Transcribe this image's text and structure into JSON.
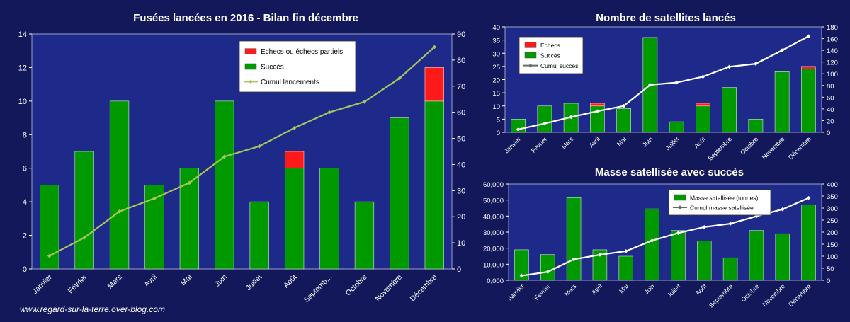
{
  "footer": "www.regard-sur-la-terre.over-blog.com",
  "colors": {
    "background": "#12185a",
    "plot": "#1e2a8a",
    "success": "#009a00",
    "failure": "#ff1a1a",
    "line_main": "#a9c45c",
    "line_white": "#ffffff"
  },
  "chart_data": [
    {
      "type": "bar",
      "title": "Fusées lancées en 2016 - Bilan fin décembre",
      "categories": [
        "Janvier",
        "Février",
        "Mars",
        "Avril",
        "Mai",
        "Juin",
        "Juillet",
        "Août",
        "Septemb...",
        "Octobre",
        "Novembre",
        "Décembre"
      ],
      "series": [
        {
          "name": "Succès",
          "values": [
            5,
            7,
            10,
            5,
            6,
            10,
            4,
            6,
            6,
            4,
            9,
            10
          ]
        },
        {
          "name": "Echecs ou échecs partiels",
          "values": [
            0,
            0,
            0,
            0,
            0,
            0,
            0,
            1,
            0,
            0,
            0,
            2
          ]
        },
        {
          "name": "Cumul lancements",
          "axis": "right",
          "values": [
            5,
            12,
            22,
            27,
            33,
            43,
            47,
            54,
            60,
            64,
            73,
            85
          ]
        }
      ],
      "ylim": [
        0,
        14
      ],
      "yticks": [
        0,
        2,
        4,
        6,
        8,
        10,
        12,
        14
      ],
      "y2lim": [
        0,
        90
      ],
      "y2ticks": [
        0,
        10,
        20,
        30,
        40,
        50,
        60,
        70,
        80,
        90
      ],
      "legend": "top-right"
    },
    {
      "type": "bar",
      "title": "Nombre de satellites lancés",
      "categories": [
        "Janvier",
        "Février",
        "Mars",
        "Avril",
        "Mai",
        "Juin",
        "Juillet",
        "Août",
        "Septembre",
        "Octobre",
        "Novembre",
        "Décembre"
      ],
      "series": [
        {
          "name": "Echecs",
          "values": [
            0,
            0,
            0,
            1,
            0,
            0,
            0,
            1,
            0,
            0,
            0,
            1
          ]
        },
        {
          "name": "Succès",
          "values": [
            5,
            10,
            11,
            10,
            9,
            36,
            4,
            10,
            17,
            5,
            23,
            24
          ]
        },
        {
          "name": "Cumul succès",
          "axis": "right",
          "values": [
            5,
            15,
            26,
            36,
            45,
            81,
            85,
            95,
            112,
            117,
            140,
            164
          ]
        }
      ],
      "ylim": [
        0,
        40
      ],
      "yticks": [
        0,
        5,
        10,
        15,
        20,
        25,
        30,
        35,
        40
      ],
      "y2lim": [
        0,
        180
      ],
      "y2ticks": [
        0,
        20,
        40,
        60,
        80,
        100,
        120,
        140,
        160,
        180
      ],
      "legend": "top-left"
    },
    {
      "type": "bar",
      "title": "Masse satellisée avec succès",
      "categories": [
        "Janvier",
        "Février",
        "Mars",
        "Avril",
        "Mai",
        "Juin",
        "Juillet",
        "Août",
        "Septembre",
        "Octobre",
        "Novembre",
        "Décembre"
      ],
      "series": [
        {
          "name": "Masse satellisée (tonnes)",
          "values": [
            19000,
            16000,
            51500,
            19000,
            15000,
            44500,
            31000,
            24500,
            14000,
            31000,
            29000,
            47000
          ]
        },
        {
          "name": "Cumul masse satellisée",
          "axis": "right",
          "values": [
            19,
            35,
            87,
            106,
            121,
            165,
            196,
            221,
            235,
            266,
            295,
            342
          ]
        }
      ],
      "ylim": [
        0,
        60000
      ],
      "yticks": [
        "0,000",
        "10,000",
        "20,000",
        "30,000",
        "40,000",
        "50,000",
        "60,000"
      ],
      "y2lim": [
        0,
        400
      ],
      "y2ticks": [
        0,
        50,
        100,
        150,
        200,
        250,
        300,
        350,
        400
      ],
      "legend": "top-right"
    }
  ]
}
